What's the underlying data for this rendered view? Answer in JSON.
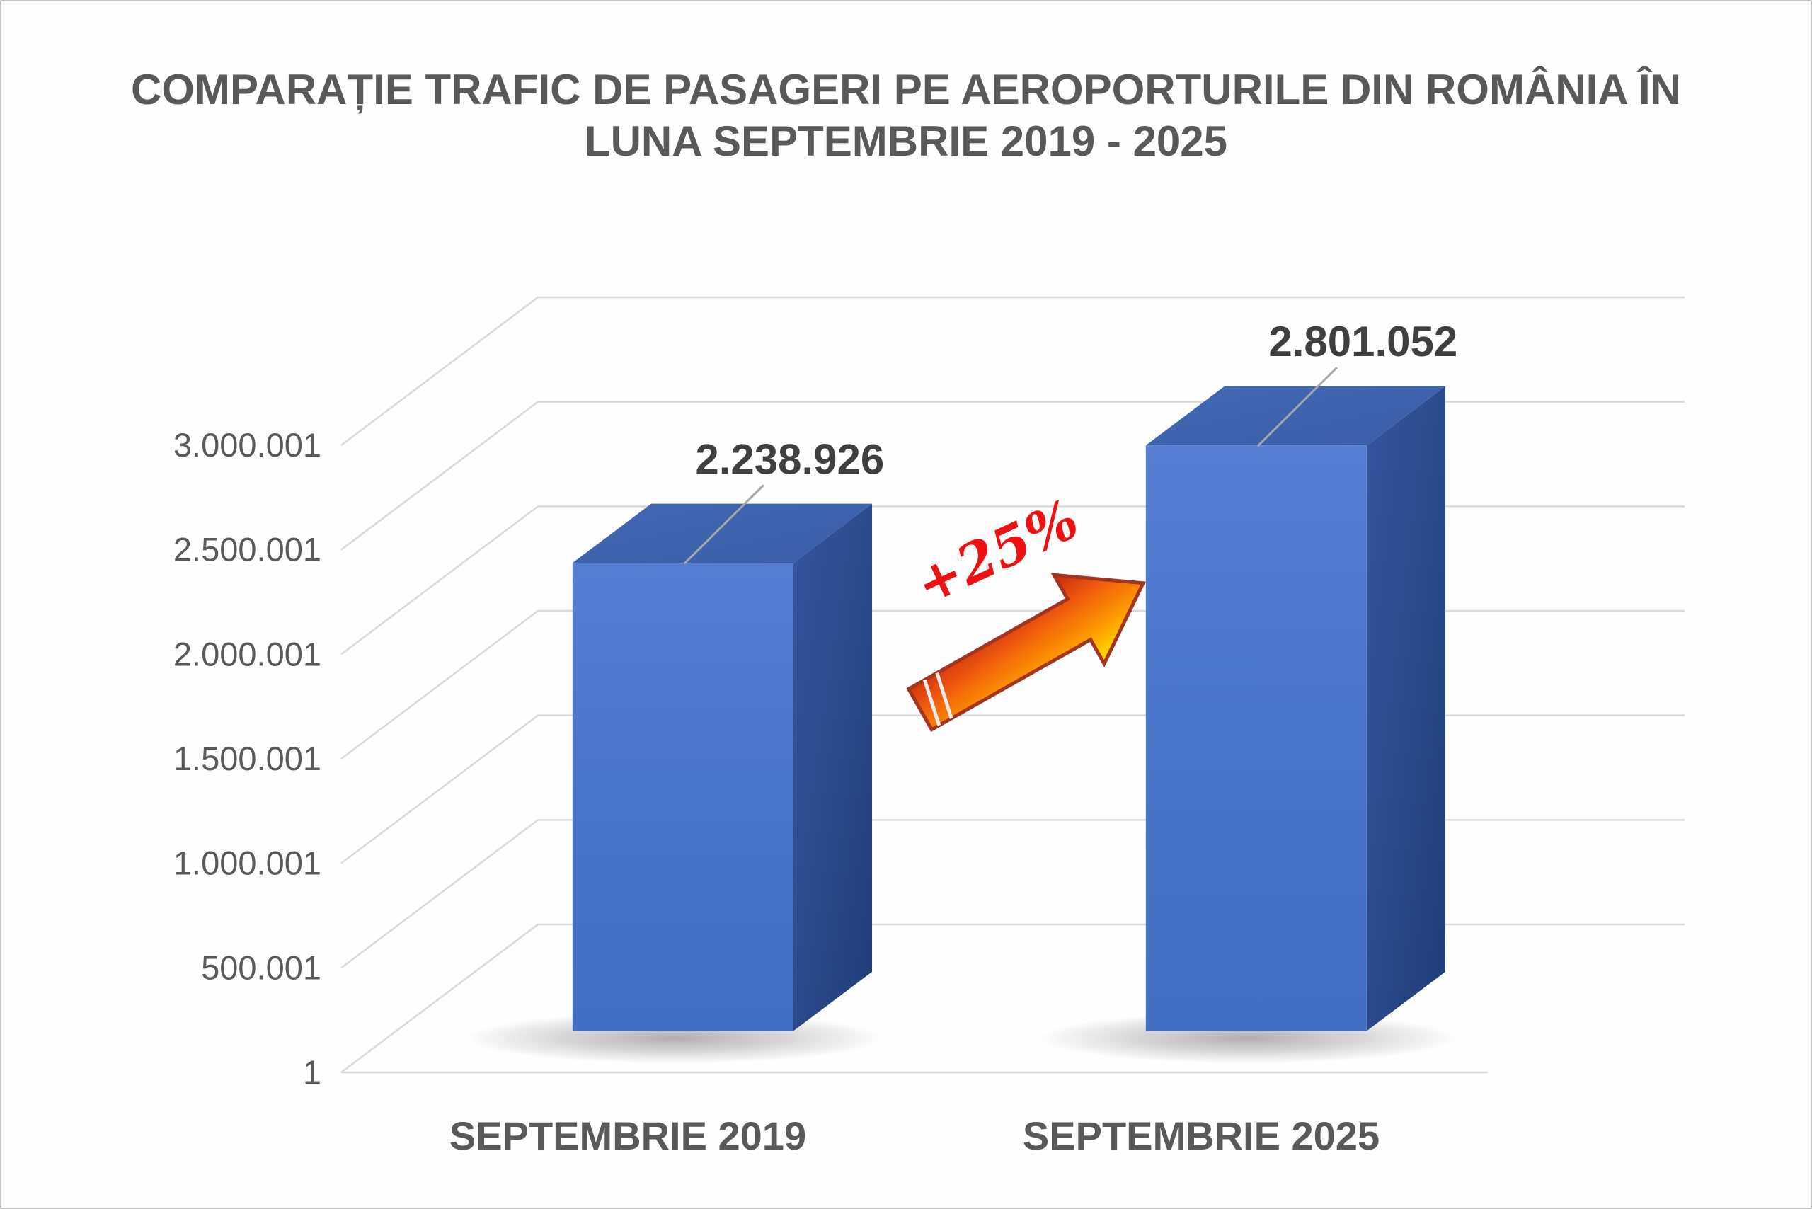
{
  "page": {
    "background": "#fefefe",
    "border_color": "#c6c6c6"
  },
  "chart_data": {
    "type": "bar",
    "variant": "3d-column",
    "title": "COMPARAȚIE TRAFIC DE PASAGERI PE AEROPORTURILE DIN ROMÂNIA ÎN LUNA SEPTEMBRIE 2019 - 2025",
    "title_line1": "COMPARAȚIE TRAFIC DE PASAGERI PE AEROPORTURILE DIN ROMÂNIA ÎN",
    "title_line2": "LUNA SEPTEMBRIE 2019 - 2025",
    "categories": [
      "SEPTEMBRIE 2019",
      "SEPTEMBRIE 2025"
    ],
    "points": [
      {
        "category": "SEPTEMBRIE 2019",
        "value": 2238926,
        "label": "2.238.926"
      },
      {
        "category": "SEPTEMBRIE 2025",
        "value": 2801052,
        "label": "2.801.052"
      }
    ],
    "yticks": [
      {
        "value": 1,
        "label": "1"
      },
      {
        "value": 500001,
        "label": "500.001"
      },
      {
        "value": 1000001,
        "label": "1.000.001"
      },
      {
        "value": 1500001,
        "label": "1.500.001"
      },
      {
        "value": 2000001,
        "label": "2.000.001"
      },
      {
        "value": 2500001,
        "label": "2.500.001"
      },
      {
        "value": 3000001,
        "label": "3.000.001"
      }
    ],
    "ylim": [
      1,
      3000001
    ],
    "grid": true,
    "legend": false,
    "xlabel": "",
    "ylabel": "",
    "annotation": {
      "text": "+25%",
      "color": "#ee1111",
      "shape": "3d-arrow-up-right"
    },
    "colors": {
      "bar_front": "#4a76cb",
      "bar_top": "#3e64ae",
      "bar_side": "#2c4c93",
      "title": "#595959",
      "axis_labels": "#595959",
      "data_labels": "#3f3f3f",
      "gridlines": "#d9d9d9",
      "arrow_dark": "#c01010",
      "arrow_light": "#ffd000"
    }
  }
}
